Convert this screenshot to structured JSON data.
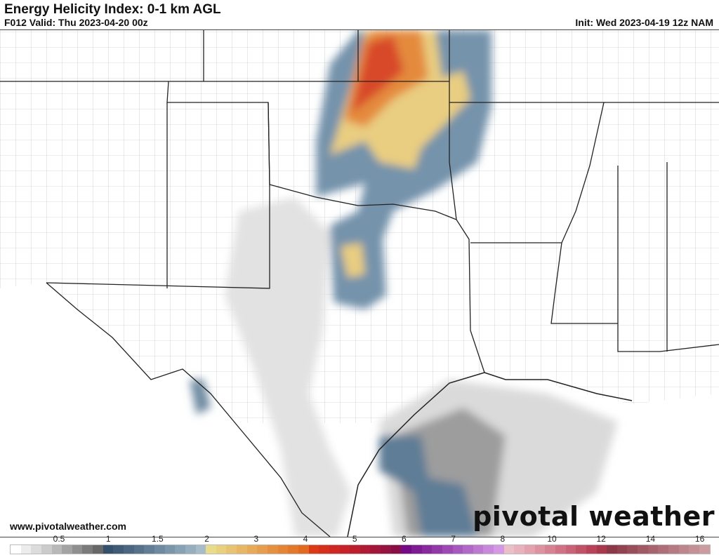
{
  "header": {
    "title": "Energy Helicity Index: 0-1 km AGL",
    "valid": "F012 Valid: Thu 2023-04-20 00z",
    "init": "Init: Wed 2023-04-19 12z NAM"
  },
  "footer": {
    "website": "www.pivotalweather.com",
    "logo": "pivotal weather"
  },
  "colorbar": {
    "ticks": [
      "0.5",
      "1",
      "1.5",
      "2",
      "3",
      "4",
      "5",
      "6",
      "7",
      "8",
      "10",
      "12",
      "14",
      "16"
    ],
    "colors": [
      "#ffffff",
      "#ececec",
      "#dcdcdc",
      "#cbcbcb",
      "#b8b8b8",
      "#a3a3a3",
      "#8f8f8f",
      "#7b7b7b",
      "#686868",
      "#35506b",
      "#3f5b75",
      "#4a6680",
      "#56728b",
      "#627e96",
      "#6e8aa1",
      "#7b96ab",
      "#88a2b5",
      "#97aebf",
      "#a7bcc8",
      "#e8dc8a",
      "#e9d07e",
      "#e8c371",
      "#e8b665",
      "#e7aa59",
      "#e69d4d",
      "#e59041",
      "#e48435",
      "#e3772a",
      "#e26a1e",
      "#dc3a16",
      "#d6301c",
      "#cf2822",
      "#c62228",
      "#bc1e2e",
      "#b01a34",
      "#a3163a",
      "#961240",
      "#8a0e46",
      "#740a86",
      "#7e1a92",
      "#88299d",
      "#9238a8",
      "#9d48b3",
      "#a758be",
      "#b268c8",
      "#bd78d2",
      "#c888dc",
      "#d498e4",
      "#eac0c8",
      "#e8b2bc",
      "#e3a2ae",
      "#dd92a0",
      "#d78292",
      "#d07284",
      "#c86276",
      "#c05268",
      "#b8425a",
      "#a8384c",
      "#8c3846",
      "#934350",
      "#9a4e5a",
      "#a15964",
      "#a8646e",
      "#af6f78",
      "#b67a82",
      "#bd858c",
      "#c49096",
      "#cb9ba0"
    ]
  },
  "map_colors": {
    "gray_light": "#e6e6e6",
    "gray": "#bdbdbd",
    "gray_dark": "#8a8a8a",
    "blue": "#6d8ba2",
    "blue_dark": "#4c6a84",
    "yellow": "#ebd183",
    "orange": "#e89a4a",
    "red": "#d9452a",
    "border": "#222222",
    "county": "#b0b0b0"
  }
}
